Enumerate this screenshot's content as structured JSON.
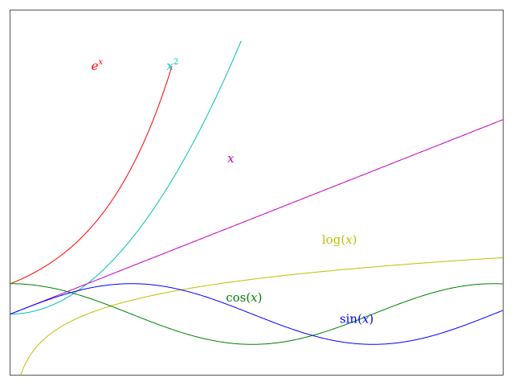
{
  "chart_data": {
    "type": "line",
    "title": "",
    "xlabel": "",
    "ylabel": "",
    "xlim": [
      0,
      6.4
    ],
    "ylim": [
      -2,
      10
    ],
    "grid": false,
    "legend": "none",
    "series": [
      {
        "name": "e^x",
        "label_parts": [
          "e",
          "x"
        ],
        "color": "#ff0000",
        "function": "exp(x)",
        "x": [
          0,
          0.25,
          0.5,
          0.75,
          1.0,
          1.25,
          1.5,
          1.75,
          2.0,
          2.1
        ],
        "y": [
          1.0,
          1.28,
          1.65,
          2.12,
          2.72,
          3.49,
          4.48,
          5.75,
          7.39,
          8.17
        ]
      },
      {
        "name": "x^2",
        "label_parts": [
          "x",
          "2"
        ],
        "color": "#00bfbf",
        "function": "x^2",
        "x": [
          0,
          0.5,
          1.0,
          1.5,
          2.0,
          2.5,
          2.8,
          3.0
        ],
        "y": [
          0.0,
          0.25,
          1.0,
          2.25,
          4.0,
          6.25,
          7.84,
          9.0
        ]
      },
      {
        "name": "x",
        "label_parts": [
          "x"
        ],
        "color": "#bf00bf",
        "function": "x",
        "x": [
          0,
          1,
          2,
          3,
          4,
          5,
          6,
          6.4
        ],
        "y": [
          0,
          1,
          2,
          3,
          4,
          5,
          6,
          6.4
        ]
      },
      {
        "name": "log(x)",
        "label_parts": [
          "log(",
          "x",
          ")"
        ],
        "color": "#bfbf00",
        "function": "log(x)",
        "x": [
          0.08,
          0.25,
          0.5,
          1.0,
          2.0,
          3.0,
          4.0,
          5.0,
          6.0,
          6.4
        ],
        "y": [
          -2.53,
          -1.39,
          -0.69,
          0.0,
          0.69,
          1.1,
          1.39,
          1.61,
          1.79,
          1.86
        ]
      },
      {
        "name": "cos(x)",
        "label_parts": [
          "cos(",
          "x",
          ")"
        ],
        "color": "#008000",
        "function": "cos(x)",
        "x": [
          0,
          1.57,
          3.14,
          4.71,
          6.28,
          6.4
        ],
        "y": [
          1.0,
          0.0,
          -1.0,
          0.0,
          1.0,
          0.99
        ]
      },
      {
        "name": "sin(x)",
        "label_parts": [
          "sin(",
          "x",
          ")"
        ],
        "color": "#0000ff",
        "function": "sin(x)",
        "x": [
          0,
          1.57,
          3.14,
          4.71,
          6.28,
          6.4
        ],
        "y": [
          0.0,
          1.0,
          0.0,
          -1.0,
          0.0,
          0.12
        ]
      }
    ],
    "annotations": [
      {
        "series": "e^x",
        "x": 1.05,
        "y": 8.15
      },
      {
        "series": "x^2",
        "x": 2.03,
        "y": 8.15
      },
      {
        "series": "x",
        "x": 2.82,
        "y": 5.1
      },
      {
        "series": "log(x)",
        "x": 4.05,
        "y": 2.43
      },
      {
        "series": "cos(x)",
        "x": 2.8,
        "y": 0.52
      },
      {
        "series": "sin(x)",
        "x": 4.28,
        "y": -0.18
      }
    ]
  }
}
